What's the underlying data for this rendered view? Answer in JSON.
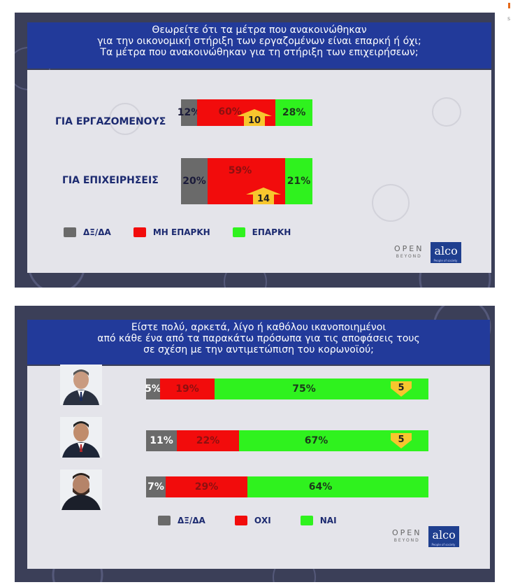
{
  "colors": {
    "panel_bg": "#3b3f58",
    "title_bg": "#223a9a",
    "card_bg": "#e4e4ea",
    "grey": "#6a6a6a",
    "red": "#f20c0c",
    "green": "#2ff21e",
    "arrow": "#f7c62e"
  },
  "side_mark": "s",
  "chart_data": [
    {
      "type": "bar",
      "stacked": true,
      "orientation": "horizontal",
      "title_lines": [
        "Θεωρείτε ότι τα μέτρα που ανακοινώθηκαν",
        "για την οικονομική στήριξη των εργαζομένων είναι επαρκή ή όχι;",
        "Τα μέτρα που ανακοινώθηκαν για τη στήριξη των επιχειρήσεων;"
      ],
      "categories": [
        "ΓΙΑ ΕΡΓΑΖΟΜΕΝΟΥΣ",
        "ΓΙΑ ΕΠΙΧΕΙΡΗΣΕΙΣ"
      ],
      "series": [
        {
          "name": "ΔΞ/ΔΑ",
          "values": [
            12,
            20
          ],
          "labels": [
            "12%",
            "20%"
          ]
        },
        {
          "name": "ΜΗ ΕΠΑΡΚΗ",
          "values": [
            60,
            59
          ],
          "labels": [
            "60%",
            "59%"
          ]
        },
        {
          "name": "ΕΠΑΡΚΗ",
          "values": [
            28,
            21
          ],
          "labels": [
            "28%",
            "21%"
          ]
        }
      ],
      "changes": [
        {
          "category": "ΓΙΑ ΕΡΓΑΖΟΜΕΝΟΥΣ",
          "series": "ΜΗ ΕΠΑΡΚΗ",
          "direction": "up",
          "label": "10"
        },
        {
          "category": "ΓΙΑ ΕΠΙΧΕΙΡΗΣΕΙΣ",
          "series": "ΜΗ ΕΠΑΡΚΗ",
          "direction": "up",
          "label": "14"
        }
      ],
      "legend": [
        "ΔΞ/ΔΑ",
        "ΜΗ ΕΠΑΡΚΗ",
        "ΕΠΑΡΚΗ"
      ],
      "legend_position": "bottom-left",
      "brand": {
        "open_top": "OPEN",
        "open_bottom": "BEYOND",
        "alco": "alco",
        "alco_tag": "People of society"
      }
    },
    {
      "type": "bar",
      "stacked": true,
      "orientation": "horizontal",
      "title_lines": [
        "Είστε πολύ, αρκετά, λίγο ή καθόλου ικανοποιημένοι",
        "από κάθε ένα από τα παρακάτω πρόσωπα για τις αποφάσεις τους",
        "σε σχέση με την αντιμετώπιση του κορωνοϊού;"
      ],
      "categories": [
        "",
        "",
        ""
      ],
      "series": [
        {
          "name": "ΔΞ/ΔΑ",
          "values": [
            5,
            11,
            7
          ],
          "labels": [
            "5%",
            "11%",
            "7%"
          ]
        },
        {
          "name": "ΟΧΙ",
          "values": [
            19,
            22,
            29
          ],
          "labels": [
            "19%",
            "22%",
            "29%"
          ]
        },
        {
          "name": "ΝΑΙ",
          "values": [
            75,
            67,
            64
          ],
          "labels": [
            "75%",
            "67%",
            "64%"
          ]
        }
      ],
      "changes": [
        {
          "row": 0,
          "series": "ΝΑΙ",
          "direction": "down",
          "label": "5"
        },
        {
          "row": 1,
          "series": "ΝΑΙ",
          "direction": "down",
          "label": "5"
        }
      ],
      "legend": [
        "ΔΞ/ΔΑ",
        "ΟΧΙ",
        "ΝΑΙ"
      ],
      "legend_position": "bottom-center",
      "brand": {
        "open_top": "OPEN",
        "open_bottom": "BEYOND",
        "alco": "alco",
        "alco_tag": "People of society"
      }
    }
  ]
}
